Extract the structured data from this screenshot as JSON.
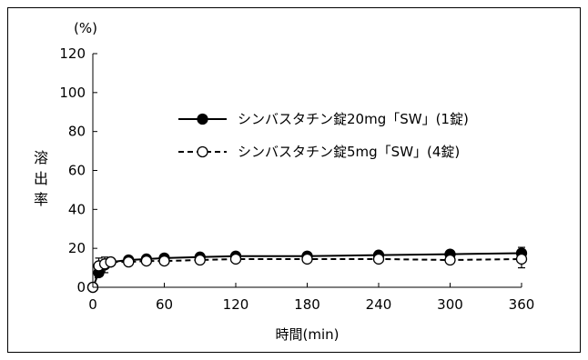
{
  "chart_data": {
    "type": "line",
    "xlabel": "時間(min)",
    "ylabel": "溶出率",
    "yunit": "(%)",
    "xlim": [
      0,
      360
    ],
    "ylim": [
      0,
      120
    ],
    "xticks": [
      0,
      60,
      120,
      180,
      240,
      300,
      360
    ],
    "yticks": [
      0,
      20,
      40,
      60,
      80,
      100,
      120
    ],
    "grid": false,
    "legend_position": "center-right",
    "series": [
      {
        "name": "シンバスタチン錠20mg「SW」(1錠)",
        "style": "solid",
        "marker": "filled-circle",
        "color": "#000000",
        "x": [
          0,
          5,
          10,
          15,
          30,
          45,
          60,
          90,
          120,
          180,
          240,
          300,
          360
        ],
        "y": [
          0,
          7.5,
          11.5,
          13,
          14,
          14.5,
          15,
          15.5,
          16,
          16,
          16.5,
          17,
          17.5
        ],
        "error": [
          0,
          2,
          4,
          1,
          0.8,
          0.8,
          0.8,
          0.8,
          0.8,
          0.8,
          0.8,
          1.2,
          3
        ]
      },
      {
        "name": "シンバスタチン錠5mg「SW」(4錠)",
        "style": "dashed",
        "marker": "open-circle",
        "color": "#000000",
        "x": [
          0,
          5,
          10,
          15,
          30,
          45,
          60,
          90,
          120,
          180,
          240,
          300,
          360
        ],
        "y": [
          0,
          11,
          12,
          13,
          13,
          13.5,
          13.5,
          14,
          14.5,
          14.5,
          14.5,
          14,
          14.5
        ],
        "error": [
          0,
          4,
          1.5,
          1,
          0.8,
          0.8,
          0.8,
          0.8,
          0.8,
          0.8,
          0.8,
          1,
          4.5
        ]
      }
    ]
  }
}
